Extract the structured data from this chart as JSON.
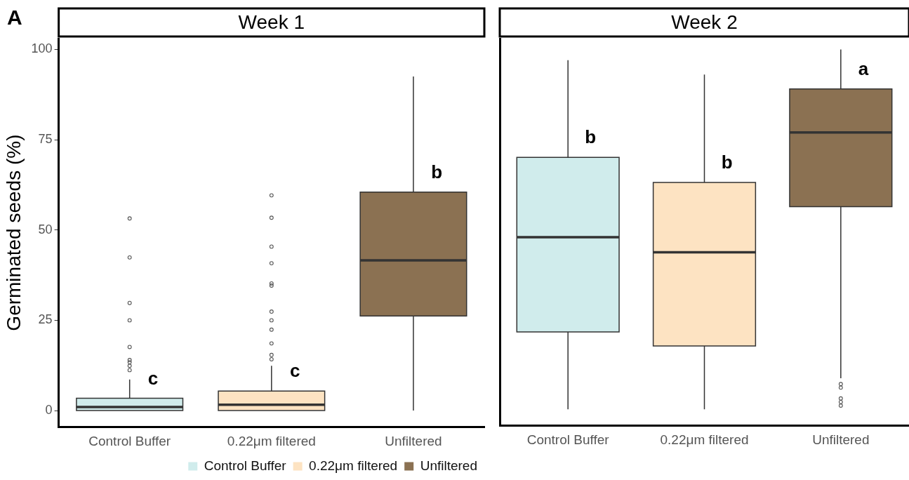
{
  "chart_data": [
    {
      "type": "box",
      "title": "Week 1",
      "ylabel": "Germinated seeds (%)",
      "categories": [
        "Control Buffer",
        "0.22μm filtered",
        "Unfiltered"
      ],
      "series": [
        {
          "name": "Control Buffer",
          "color": "#d0ecec",
          "boxes": [
            {
              "low": 0,
              "q1": 0,
              "median": 1,
              "q3": 3.4,
              "high": 8.6,
              "outliers": [
                53.2,
                42.4,
                29.8,
                25,
                17.6,
                14,
                13.4,
                12.4,
                11.2
              ]
            },
            null,
            null
          ]
        },
        {
          "name": "0.22μm filtered",
          "color": "#fde3c2",
          "boxes": [
            null,
            {
              "low": 0,
              "q1": 0,
              "median": 1.6,
              "q3": 5.4,
              "high": 12.4,
              "outliers": [
                59.6,
                53.4,
                45.4,
                40.8,
                35.2,
                34.6,
                27.4,
                25,
                22.4,
                18.6,
                15.4,
                14.2
              ]
            },
            null
          ]
        },
        {
          "name": "Unfiltered",
          "color": "#8b7152",
          "boxes": [
            null,
            null,
            {
              "low": 0,
              "q1": 26.2,
              "median": 41.6,
              "q3": 60.5,
              "high": 92.5
            }
          ]
        }
      ],
      "ylim": [
        -4.5,
        103
      ],
      "yticks": [
        0,
        25,
        50,
        75,
        100
      ],
      "grid": false,
      "legend": "bottom",
      "annotations": [
        "A",
        {
          "text": "c",
          "x": "Control Buffer",
          "y": 3.4
        },
        {
          "text": "c",
          "x": "0.22μm filtered",
          "y": 5.4
        },
        {
          "text": "b",
          "x": "Unfiltered",
          "y": 60.5
        }
      ]
    },
    {
      "type": "box",
      "title": "Week 2",
      "categories": [
        "Control Buffer",
        "0.22μm filtered",
        "Unfiltered"
      ],
      "series": [
        {
          "name": "Control Buffer",
          "color": "#d0ecec",
          "boxes": [
            {
              "low": 0,
              "q1": 21.5,
              "median": 47.8,
              "q3": 70,
              "high": 97
            },
            null,
            null
          ]
        },
        {
          "name": "0.22μm filtered",
          "color": "#fde3c2",
          "boxes": [
            null,
            {
              "low": 0,
              "q1": 17.6,
              "median": 43.6,
              "q3": 63,
              "high": 93
            },
            null
          ]
        },
        {
          "name": "Unfiltered",
          "color": "#8b7152",
          "boxes": [
            null,
            null,
            {
              "low": 8.6,
              "q1": 56.3,
              "median": 76.9,
              "q3": 89,
              "high": 100,
              "outliers": [
                7,
                6,
                3,
                2,
                1
              ]
            }
          ]
        }
      ],
      "ylim": [
        -4.5,
        103
      ],
      "yticks": [
        0,
        25,
        50,
        75,
        100
      ],
      "grid": false,
      "tick_labels": "x",
      "annotations": [
        {
          "text": "b",
          "x": "Control Buffer",
          "y": 70
        },
        {
          "text": "b",
          "x": "0.22μm filtered",
          "y": 63
        },
        {
          "text": "a",
          "x": "Unfiltered",
          "y": 89
        }
      ]
    }
  ]
}
